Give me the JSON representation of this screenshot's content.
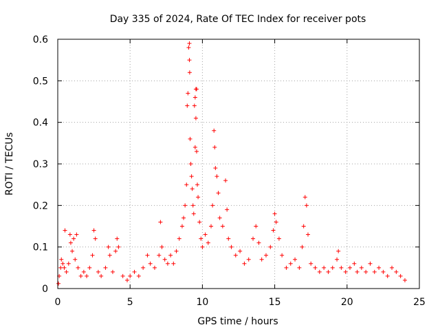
{
  "chart_data": {
    "type": "scatter",
    "title": "Day 335 of 2024, Rate Of TEC Index for receiver pots",
    "xlabel": "GPS time / hours",
    "ylabel": "ROTI / TECUs",
    "xlim": [
      0,
      25
    ],
    "ylim": [
      0,
      0.6
    ],
    "xticks": [
      "0",
      "5",
      "10",
      "15",
      "20",
      "25"
    ],
    "yticks": [
      "0",
      "0.1",
      "0.2",
      "0.3",
      "0.4",
      "0.5",
      "0.6"
    ],
    "grid": true,
    "marker": "+",
    "colors": {
      "points": "#ff0000",
      "grid": "#a0a0a0"
    },
    "series": [
      {
        "values": [
          [
            0.05,
            0.012
          ],
          [
            0.1,
            0.03
          ],
          [
            0.2,
            0.05
          ],
          [
            0.25,
            0.07
          ],
          [
            0.35,
            0.06
          ],
          [
            0.45,
            0.05
          ],
          [
            0.5,
            0.14
          ],
          [
            0.6,
            0.04
          ],
          [
            0.75,
            0.06
          ],
          [
            0.85,
            0.13
          ],
          [
            0.9,
            0.11
          ],
          [
            1.0,
            0.09
          ],
          [
            1.1,
            0.12
          ],
          [
            1.2,
            0.07
          ],
          [
            1.3,
            0.13
          ],
          [
            1.4,
            0.05
          ],
          [
            1.6,
            0.03
          ],
          [
            1.8,
            0.04
          ],
          [
            2.0,
            0.03
          ],
          [
            2.2,
            0.05
          ],
          [
            2.4,
            0.08
          ],
          [
            2.5,
            0.14
          ],
          [
            2.6,
            0.12
          ],
          [
            2.8,
            0.04
          ],
          [
            3.0,
            0.03
          ],
          [
            3.3,
            0.05
          ],
          [
            3.5,
            0.1
          ],
          [
            3.6,
            0.08
          ],
          [
            3.8,
            0.04
          ],
          [
            4.0,
            0.09
          ],
          [
            4.1,
            0.12
          ],
          [
            4.2,
            0.1
          ],
          [
            4.5,
            0.03
          ],
          [
            4.8,
            0.02
          ],
          [
            5.0,
            0.03
          ],
          [
            5.3,
            0.04
          ],
          [
            5.6,
            0.03
          ],
          [
            5.9,
            0.05
          ],
          [
            6.2,
            0.08
          ],
          [
            6.4,
            0.06
          ],
          [
            6.7,
            0.05
          ],
          [
            7.0,
            0.08
          ],
          [
            7.1,
            0.16
          ],
          [
            7.2,
            0.1
          ],
          [
            7.4,
            0.07
          ],
          [
            7.6,
            0.06
          ],
          [
            7.8,
            0.08
          ],
          [
            8.0,
            0.06
          ],
          [
            8.2,
            0.09
          ],
          [
            8.4,
            0.12
          ],
          [
            8.6,
            0.15
          ],
          [
            8.7,
            0.17
          ],
          [
            8.8,
            0.2
          ],
          [
            8.9,
            0.25
          ],
          [
            8.95,
            0.44
          ],
          [
            9.0,
            0.47
          ],
          [
            9.05,
            0.58
          ],
          [
            9.1,
            0.59
          ],
          [
            9.1,
            0.55
          ],
          [
            9.12,
            0.52
          ],
          [
            9.15,
            0.36
          ],
          [
            9.2,
            0.3
          ],
          [
            9.25,
            0.27
          ],
          [
            9.3,
            0.24
          ],
          [
            9.35,
            0.2
          ],
          [
            9.4,
            0.18
          ],
          [
            9.45,
            0.44
          ],
          [
            9.5,
            0.46
          ],
          [
            9.55,
            0.48
          ],
          [
            9.6,
            0.48
          ],
          [
            9.55,
            0.41
          ],
          [
            9.5,
            0.34
          ],
          [
            9.6,
            0.33
          ],
          [
            9.65,
            0.25
          ],
          [
            9.7,
            0.22
          ],
          [
            9.8,
            0.16
          ],
          [
            9.9,
            0.12
          ],
          [
            10.0,
            0.1
          ],
          [
            10.2,
            0.13
          ],
          [
            10.4,
            0.11
          ],
          [
            10.6,
            0.15
          ],
          [
            10.7,
            0.2
          ],
          [
            10.8,
            0.38
          ],
          [
            10.85,
            0.34
          ],
          [
            10.9,
            0.29
          ],
          [
            11.0,
            0.27
          ],
          [
            11.1,
            0.23
          ],
          [
            11.2,
            0.17
          ],
          [
            11.4,
            0.15
          ],
          [
            11.6,
            0.26
          ],
          [
            11.7,
            0.19
          ],
          [
            11.8,
            0.12
          ],
          [
            12.0,
            0.1
          ],
          [
            12.3,
            0.08
          ],
          [
            12.6,
            0.09
          ],
          [
            12.9,
            0.06
          ],
          [
            13.2,
            0.07
          ],
          [
            13.5,
            0.12
          ],
          [
            13.7,
            0.15
          ],
          [
            13.9,
            0.11
          ],
          [
            14.1,
            0.07
          ],
          [
            14.4,
            0.08
          ],
          [
            14.7,
            0.1
          ],
          [
            14.9,
            0.14
          ],
          [
            15.0,
            0.18
          ],
          [
            15.1,
            0.16
          ],
          [
            15.3,
            0.12
          ],
          [
            15.5,
            0.08
          ],
          [
            15.8,
            0.05
          ],
          [
            16.1,
            0.06
          ],
          [
            16.4,
            0.07
          ],
          [
            16.7,
            0.05
          ],
          [
            16.9,
            0.1
          ],
          [
            17.0,
            0.15
          ],
          [
            17.1,
            0.22
          ],
          [
            17.2,
            0.2
          ],
          [
            17.3,
            0.13
          ],
          [
            17.5,
            0.06
          ],
          [
            17.8,
            0.05
          ],
          [
            18.1,
            0.04
          ],
          [
            18.4,
            0.05
          ],
          [
            18.7,
            0.04
          ],
          [
            19.0,
            0.05
          ],
          [
            19.3,
            0.07
          ],
          [
            19.4,
            0.09
          ],
          [
            19.6,
            0.05
          ],
          [
            19.9,
            0.04
          ],
          [
            20.2,
            0.05
          ],
          [
            20.5,
            0.06
          ],
          [
            20.7,
            0.04
          ],
          [
            21.0,
            0.05
          ],
          [
            21.3,
            0.04
          ],
          [
            21.6,
            0.06
          ],
          [
            21.9,
            0.04
          ],
          [
            22.2,
            0.05
          ],
          [
            22.5,
            0.04
          ],
          [
            22.8,
            0.03
          ],
          [
            23.1,
            0.05
          ],
          [
            23.4,
            0.04
          ],
          [
            23.7,
            0.03
          ],
          [
            24.0,
            0.02
          ]
        ]
      }
    ]
  }
}
